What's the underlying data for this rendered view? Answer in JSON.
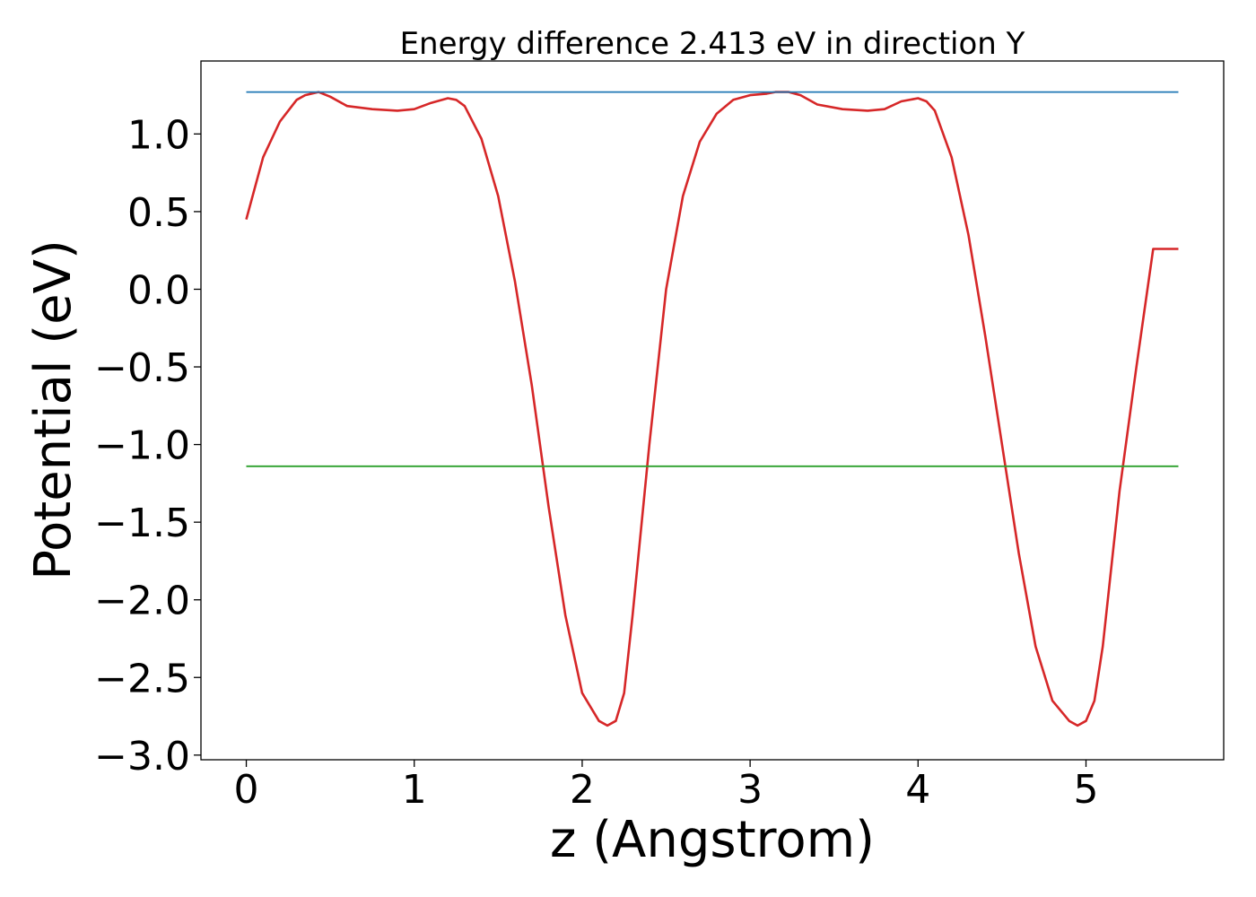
{
  "chart_data": {
    "type": "line",
    "title": "Energy difference 2.413 eV in direction Y",
    "xlabel": "z (Angstrom)",
    "ylabel": "Potential (eV)",
    "xlim": [
      -0.27,
      5.82
    ],
    "ylim": [
      -3.03,
      1.47
    ],
    "xticks": [
      0,
      1,
      2,
      3,
      4,
      5
    ],
    "xtick_labels": [
      "0",
      "1",
      "2",
      "3",
      "4",
      "5"
    ],
    "yticks": [
      1.0,
      0.5,
      0.0,
      -0.5,
      -1.0,
      -1.5,
      -2.0,
      -2.5,
      -3.0
    ],
    "ytick_labels": [
      "1.0",
      "0.5",
      "0.0",
      "−0.5",
      "−1.0",
      "−1.5",
      "−2.0",
      "−2.5",
      "−3.0"
    ],
    "grid": false,
    "legend": "none",
    "series": [
      {
        "color": "#d62728",
        "x": [
          0.0,
          0.1,
          0.2,
          0.3,
          0.35,
          0.43,
          0.5,
          0.6,
          0.75,
          0.9,
          1.0,
          1.1,
          1.2,
          1.25,
          1.3,
          1.4,
          1.5,
          1.6,
          1.7,
          1.8,
          1.9,
          2.0,
          2.1,
          2.15,
          2.2,
          2.25,
          2.3,
          2.4,
          2.5,
          2.6,
          2.7,
          2.8,
          2.9,
          3.0,
          3.1,
          3.15,
          3.23,
          3.3,
          3.4,
          3.55,
          3.7,
          3.8,
          3.9,
          4.0,
          4.05,
          4.1,
          4.2,
          4.3,
          4.4,
          4.5,
          4.6,
          4.7,
          4.8,
          4.9,
          4.95,
          5.0,
          5.05,
          5.1,
          5.2,
          5.3,
          5.4,
          5.5,
          5.55
        ],
        "y": [
          0.45,
          0.85,
          1.08,
          1.22,
          1.25,
          1.27,
          1.24,
          1.18,
          1.16,
          1.15,
          1.16,
          1.2,
          1.23,
          1.22,
          1.18,
          0.97,
          0.6,
          0.05,
          -0.62,
          -1.4,
          -2.1,
          -2.6,
          -2.78,
          -2.81,
          -2.78,
          -2.6,
          -2.1,
          -1.0,
          0.0,
          0.6,
          0.95,
          1.13,
          1.22,
          1.25,
          1.26,
          1.27,
          1.27,
          1.25,
          1.19,
          1.16,
          1.15,
          1.16,
          1.21,
          1.23,
          1.21,
          1.15,
          0.85,
          0.35,
          -0.3,
          -1.0,
          -1.7,
          -2.3,
          -2.65,
          -2.78,
          -2.81,
          -2.78,
          -2.65,
          -2.3,
          -1.3,
          -0.5,
          0.26,
          0.26,
          0.26
        ]
      },
      {
        "color": "#1f77b4",
        "x": [
          0.0,
          5.55
        ],
        "y": [
          1.27,
          1.27
        ]
      },
      {
        "color": "#2ca02c",
        "x": [
          0.0,
          5.55
        ],
        "y": [
          -1.14,
          -1.14
        ]
      }
    ]
  }
}
